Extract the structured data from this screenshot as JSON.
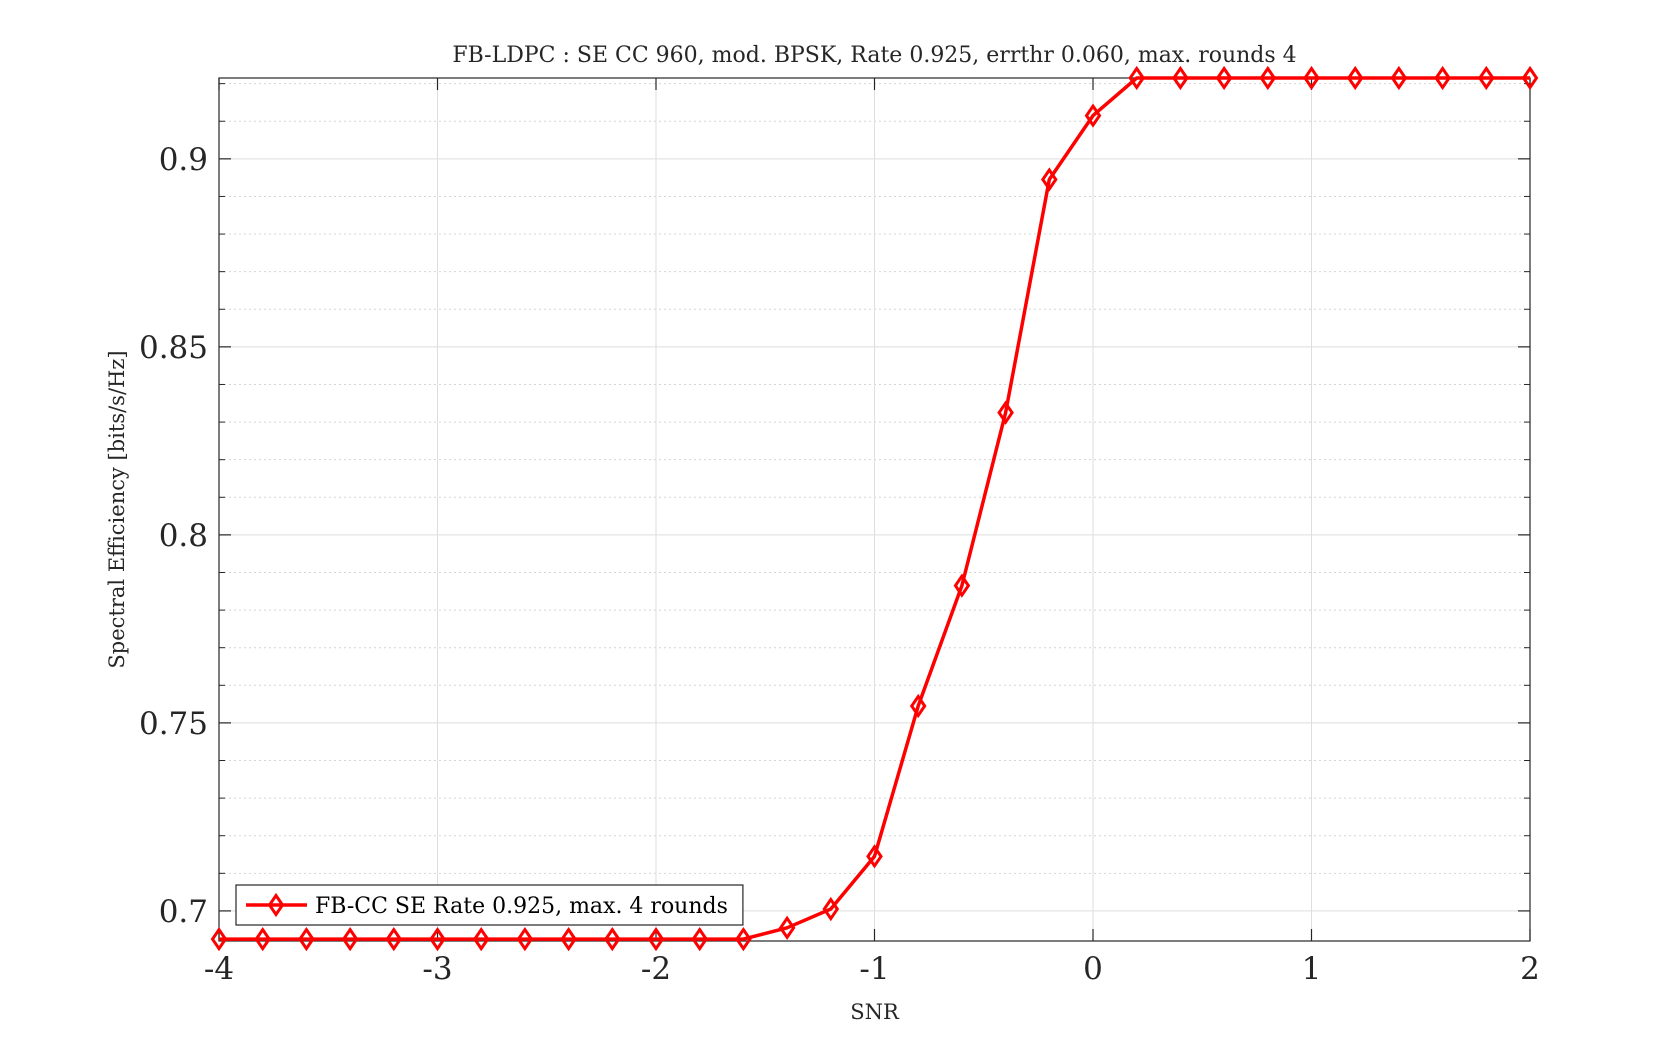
{
  "chart_data": {
    "type": "line",
    "title": "FB-LDPC : SE CC 960, mod. BPSK, Rate 0.925, errthr 0.060, max. rounds 4",
    "xlabel": "SNR",
    "ylabel": "Spectral Efficiency [bits/s/Hz]",
    "xlim": [
      -4,
      2
    ],
    "ylim": [
      0.692,
      0.9215
    ],
    "xticks": [
      -4,
      -3,
      -2,
      -1,
      0,
      1,
      2
    ],
    "xtick_labels": [
      "-4",
      "-3",
      "-2",
      "-1",
      "0",
      "1",
      "2"
    ],
    "yticks": [
      0.7,
      0.75,
      0.8,
      0.85,
      0.9
    ],
    "ytick_labels": [
      "0.7",
      "0.75",
      "0.8",
      "0.85",
      "0.9"
    ],
    "yminor_step": 0.01,
    "grid": true,
    "legend_position": "bottom-left",
    "series": [
      {
        "name": "FB-CC SE Rate 0.925, max. 4 rounds",
        "color": "#ff0000",
        "marker": "diamond",
        "x": [
          -4,
          -3.8,
          -3.6,
          -3.4,
          -3.2,
          -3,
          -2.8,
          -2.6,
          -2.4,
          -2.2,
          -2,
          -1.8,
          -1.6,
          -1.4,
          -1.2,
          -1,
          -0.8,
          -0.6,
          -0.4,
          -0.2,
          0,
          0.2,
          0.4,
          0.6,
          0.8,
          1,
          1.2,
          1.4,
          1.6,
          1.8,
          2
        ],
        "y": [
          0.6925,
          0.6925,
          0.6925,
          0.6925,
          0.6925,
          0.6925,
          0.6925,
          0.6925,
          0.6925,
          0.6925,
          0.6925,
          0.6925,
          0.6925,
          0.6955,
          0.7005,
          0.7145,
          0.7545,
          0.7865,
          0.8325,
          0.8945,
          0.9115,
          0.9215,
          0.9215,
          0.9215,
          0.9215,
          0.9215,
          0.9215,
          0.9215,
          0.9215,
          0.9215,
          0.9215
        ]
      }
    ]
  }
}
